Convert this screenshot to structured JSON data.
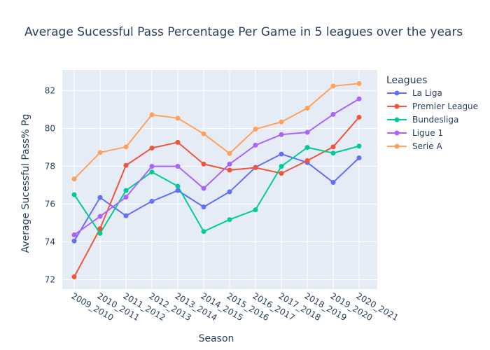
{
  "chart_data": {
    "type": "line",
    "title": "Average Sucessful Pass Percentage Per Game in 5 leagues over the years",
    "xlabel": "Season",
    "ylabel": "Average Sucessful Pass% Pg",
    "legend_title": "Leagues",
    "legend_position": "top-right",
    "grid": true,
    "ylim": [
      71.5,
      83.1
    ],
    "y_ticks": [
      72,
      74,
      76,
      78,
      80,
      82
    ],
    "categories": [
      "2009_2010",
      "2010_2011",
      "2011_2012",
      "2012_2013",
      "2013_2014",
      "2014_2015",
      "2015_2016",
      "2016_2017",
      "2017_2018",
      "2018_2019",
      "2019_2020",
      "2020_2021"
    ],
    "series": [
      {
        "name": "La Liga",
        "color": "#636efa",
        "values": [
          74.05,
          76.35,
          75.38,
          76.15,
          76.72,
          75.85,
          76.65,
          77.95,
          78.65,
          78.2,
          77.15,
          78.45
        ]
      },
      {
        "name": "Premier League",
        "color": "#ef553b",
        "values": [
          72.15,
          74.7,
          78.05,
          78.97,
          79.27,
          78.12,
          77.8,
          77.93,
          77.63,
          78.3,
          79.03,
          80.6
        ]
      },
      {
        "name": "Bundesliga",
        "color": "#00cc96",
        "values": [
          76.5,
          74.45,
          76.72,
          77.7,
          76.95,
          74.55,
          75.18,
          75.7,
          78.0,
          79.0,
          78.7,
          79.07
        ]
      },
      {
        "name": "Ligue 1",
        "color": "#ab63fa",
        "values": [
          74.37,
          75.35,
          76.37,
          78.0,
          78.0,
          76.83,
          78.12,
          79.12,
          79.68,
          79.8,
          80.75,
          81.57
        ]
      },
      {
        "name": "Serie A",
        "color": "#ffa15a",
        "values": [
          77.33,
          78.73,
          79.03,
          80.73,
          80.55,
          79.72,
          78.68,
          79.97,
          80.35,
          81.08,
          82.25,
          82.38
        ]
      }
    ]
  }
}
